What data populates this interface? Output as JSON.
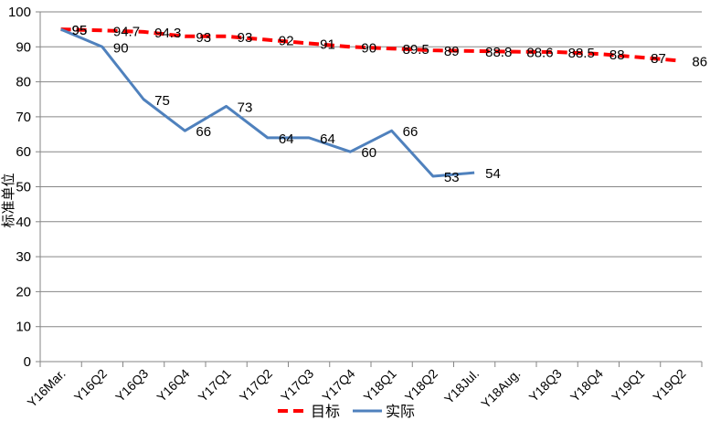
{
  "chart_data": {
    "type": "line",
    "categories": [
      "Y16Mar.",
      "Y16Q2",
      "Y16Q3",
      "Y16Q4",
      "Y17Q1",
      "Y17Q2",
      "Y17Q3",
      "Y17Q4",
      "Y18Q1",
      "Y18Q2",
      "Y18Jul.",
      "Y18Aug.",
      "Y18Q3",
      "Y18Q4",
      "Y19Q1",
      "Y19Q2"
    ],
    "series": [
      {
        "name": "目标",
        "color": "#ff0000",
        "style": "dashed",
        "x": [
          0.5,
          1.5,
          2.5,
          3.5,
          4.5,
          5.5,
          6.5,
          7.5,
          8.5,
          9.5,
          10.5,
          11.5,
          12.5,
          13.5,
          14.5,
          15.5
        ],
        "values": [
          95,
          94.7,
          94.3,
          93,
          93,
          92,
          91,
          90,
          89.5,
          89,
          88.8,
          88.6,
          88.5,
          88,
          87,
          86
        ]
      },
      {
        "name": "实际",
        "color": "#4f81bd",
        "style": "solid",
        "x": [
          0.5,
          1.5,
          2.5,
          3.5,
          4.5,
          5.5,
          6.5,
          7.5,
          8.5,
          9.5,
          10.5
        ],
        "values": [
          95,
          90,
          75,
          66,
          73,
          64,
          64,
          60,
          66,
          53,
          54
        ]
      }
    ],
    "ylabel": "标准单位",
    "ylim": [
      0,
      100
    ],
    "yticks": [
      0,
      10,
      20,
      30,
      40,
      50,
      60,
      70,
      80,
      90,
      100
    ],
    "grid": true,
    "legend": "bottom"
  }
}
